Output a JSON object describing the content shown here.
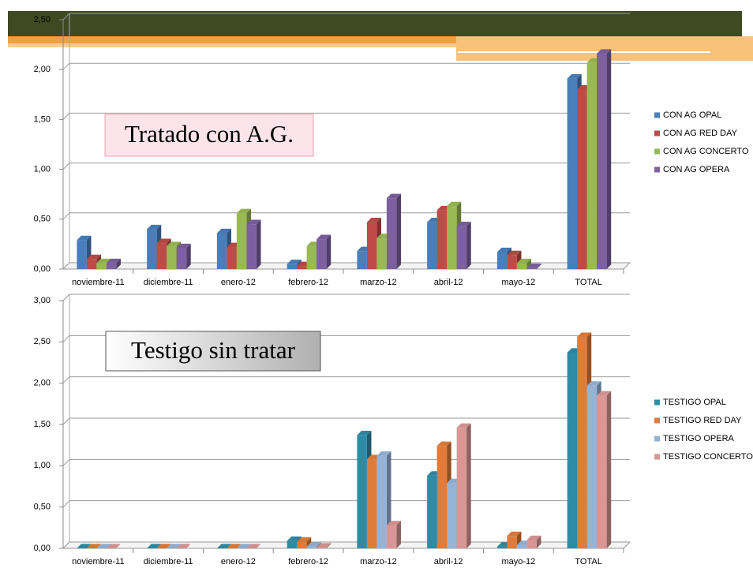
{
  "chart_data": [
    {
      "type": "bar",
      "annotation": "Tratado con A.G.",
      "categories": [
        "noviembre-11",
        "diciembre-11",
        "enero-12",
        "febrero-12",
        "marzo-12",
        "abril-12",
        "mayo-12",
        "TOTAL"
      ],
      "series": [
        {
          "name": "CON AG OPAL",
          "color": "#4a7ebb",
          "values": [
            0.29,
            0.4,
            0.36,
            0.05,
            0.18,
            0.47,
            0.17,
            1.91
          ]
        },
        {
          "name": "CON AG RED DAY",
          "color": "#be4b48",
          "values": [
            0.1,
            0.26,
            0.22,
            0.03,
            0.47,
            0.59,
            0.14,
            1.8
          ]
        },
        {
          "name": "CON AG CONCERTO",
          "color": "#98b954",
          "values": [
            0.06,
            0.23,
            0.56,
            0.23,
            0.31,
            0.63,
            0.06,
            2.07
          ]
        },
        {
          "name": "CON AG OPERA",
          "color": "#7d60a0",
          "values": [
            0.06,
            0.21,
            0.45,
            0.3,
            0.71,
            0.43,
            0.01,
            2.16
          ]
        }
      ],
      "ylim": [
        0,
        2.5
      ],
      "yticks": [
        {
          "value": 0,
          "label": "0,00"
        },
        {
          "value": 0.5,
          "label": "0,50"
        },
        {
          "value": 1,
          "label": "1,00"
        },
        {
          "value": 1.5,
          "label": "1,50"
        },
        {
          "value": 2,
          "label": "2,00"
        },
        {
          "value": 2.5,
          "label": "2,50"
        }
      ],
      "grid": true,
      "legend": "right"
    },
    {
      "type": "bar",
      "annotation": "Testigo sin tratar",
      "categories": [
        "noviembre-11",
        "diciembre-11",
        "enero-12",
        "febrero-12",
        "marzo-12",
        "abril-12",
        "mayo-12",
        "TOTAL"
      ],
      "series": [
        {
          "name": "TESTIGO OPAL",
          "color": "#2f8ba5",
          "values": [
            0,
            0,
            0,
            0.09,
            1.37,
            0.88,
            0.02,
            2.37
          ]
        },
        {
          "name": "TESTIGO RED DAY",
          "color": "#e07b39",
          "values": [
            0,
            0,
            0,
            0.08,
            1.08,
            1.24,
            0.15,
            2.56
          ]
        },
        {
          "name": "TESTIGO OPERA",
          "color": "#95b3d7",
          "values": [
            0,
            0,
            0,
            0.02,
            1.12,
            0.79,
            0.04,
            1.97
          ]
        },
        {
          "name": "TESTIGO CONCERTO",
          "color": "#d99694",
          "values": [
            0,
            0,
            0,
            0.01,
            0.28,
            1.46,
            0.1,
            1.85
          ]
        }
      ],
      "ylim": [
        0,
        3
      ],
      "yticks": [
        {
          "value": 0,
          "label": "0,00"
        },
        {
          "value": 0.5,
          "label": "0,50"
        },
        {
          "value": 1,
          "label": "1,00"
        },
        {
          "value": 1.5,
          "label": "1,50"
        },
        {
          "value": 2,
          "label": "2,00"
        },
        {
          "value": 2.5,
          "label": "2,50"
        },
        {
          "value": 3,
          "label": "3,00"
        }
      ],
      "grid": true,
      "legend": "right"
    }
  ]
}
